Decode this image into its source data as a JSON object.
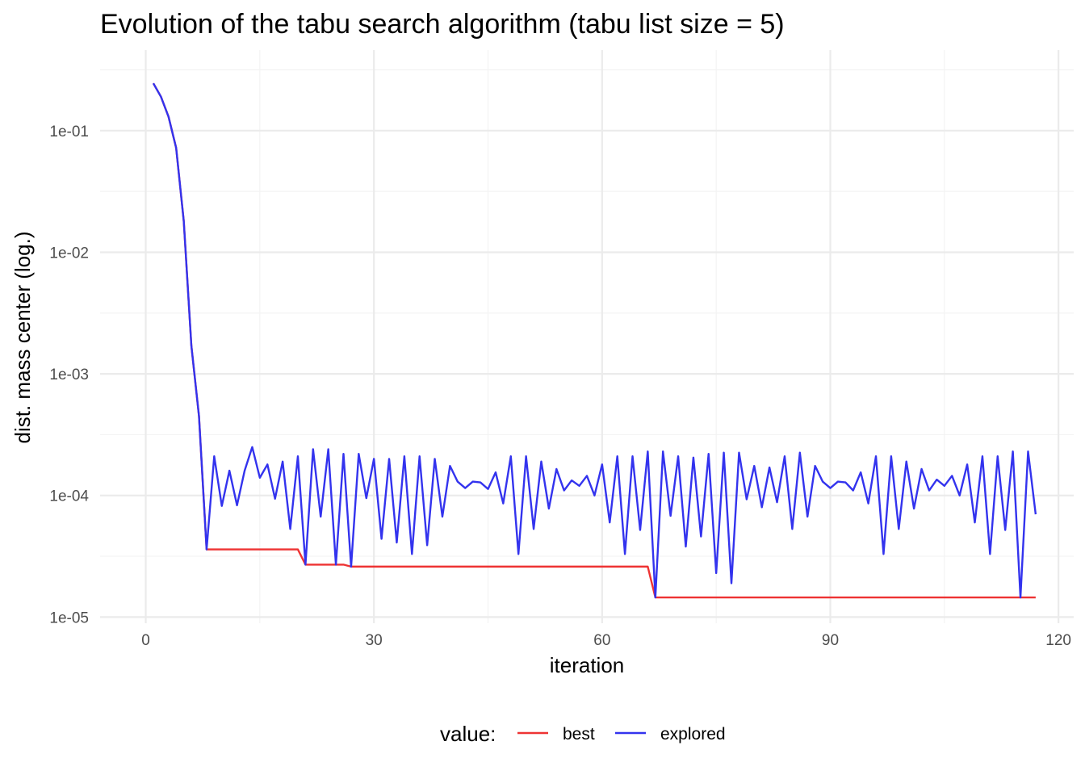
{
  "chart_data": {
    "type": "line",
    "title": "Evolution of the tabu search algorithm (tabu list size = 5)",
    "xlabel": "iteration",
    "ylabel": "dist. mass center (log.)",
    "x_scale": "linear",
    "y_scale": "log10",
    "xlim": [
      -6,
      122
    ],
    "ylim": [
      8.9e-06,
      0.46
    ],
    "x_ticks": [
      0,
      30,
      60,
      90,
      120
    ],
    "x_tick_labels": [
      "0",
      "30",
      "60",
      "90",
      "120"
    ],
    "y_ticks": [
      1e-05,
      0.0001,
      0.001,
      0.01,
      0.1
    ],
    "y_tick_labels": [
      "1e-05",
      "1e-04",
      "1e-03",
      "1e-02",
      "1e-01"
    ],
    "grid": true,
    "legend": {
      "position": "bottom",
      "title": "value:"
    },
    "series": [
      {
        "name": "best",
        "color": "#ee3333",
        "points": [
          [
            1,
            0.245
          ],
          [
            2,
            0.19
          ],
          [
            3,
            0.13
          ],
          [
            4,
            0.072
          ],
          [
            5,
            0.018
          ],
          [
            6,
            0.0017
          ],
          [
            7,
            0.00045
          ],
          [
            8,
            3.6e-05
          ],
          [
            20,
            3.6e-05
          ],
          [
            21,
            2.7e-05
          ],
          [
            25,
            2.7e-05
          ],
          [
            26,
            2.7e-05
          ],
          [
            27,
            2.6e-05
          ],
          [
            66,
            2.6e-05
          ],
          [
            67,
            1.45e-05
          ],
          [
            117,
            1.45e-05
          ]
        ]
      },
      {
        "name": "explored",
        "color": "#3333ee",
        "points": [
          [
            1,
            0.245
          ],
          [
            2,
            0.19
          ],
          [
            3,
            0.13
          ],
          [
            4,
            0.072
          ],
          [
            5,
            0.018
          ],
          [
            6,
            0.0017
          ],
          [
            7,
            0.00045
          ],
          [
            8,
            3.6e-05
          ],
          [
            9,
            0.00021
          ],
          [
            10,
            8.2e-05
          ],
          [
            11,
            0.00016
          ],
          [
            12,
            8.3e-05
          ],
          [
            13,
            0.00016
          ],
          [
            14,
            0.00025
          ],
          [
            15,
            0.00014
          ],
          [
            16,
            0.00018
          ],
          [
            17,
            9.4e-05
          ],
          [
            18,
            0.00019
          ],
          [
            19,
            5.3e-05
          ],
          [
            20,
            0.00021
          ],
          [
            21,
            2.7e-05
          ],
          [
            22,
            0.00024
          ],
          [
            23,
            6.7e-05
          ],
          [
            24,
            0.00024
          ],
          [
            25,
            2.7e-05
          ],
          [
            26,
            0.00022
          ],
          [
            27,
            2.6e-05
          ],
          [
            28,
            0.00022
          ],
          [
            29,
            9.5e-05
          ],
          [
            30,
            0.0002
          ],
          [
            31,
            4.4e-05
          ],
          [
            32,
            0.0002
          ],
          [
            33,
            4.1e-05
          ],
          [
            34,
            0.00021
          ],
          [
            35,
            3.3e-05
          ],
          [
            36,
            0.00021
          ],
          [
            37,
            3.9e-05
          ],
          [
            38,
            0.0002
          ],
          [
            39,
            6.7e-05
          ],
          [
            40,
            0.000175
          ],
          [
            41,
            0.00013
          ],
          [
            42,
            0.000115
          ],
          [
            43,
            0.00013
          ],
          [
            44,
            0.000128
          ],
          [
            45,
            0.000113
          ],
          [
            46,
            0.000155
          ],
          [
            47,
            8.6e-05
          ],
          [
            48,
            0.00021
          ],
          [
            49,
            3.3e-05
          ],
          [
            50,
            0.00021
          ],
          [
            51,
            5.3e-05
          ],
          [
            52,
            0.00019
          ],
          [
            53,
            7.8e-05
          ],
          [
            54,
            0.000165
          ],
          [
            55,
            0.00011
          ],
          [
            56,
            0.000133
          ],
          [
            57,
            0.00012
          ],
          [
            58,
            0.000145
          ],
          [
            59,
            0.0001
          ],
          [
            60,
            0.00018
          ],
          [
            61,
            6e-05
          ],
          [
            62,
            0.00021
          ],
          [
            63,
            3.3e-05
          ],
          [
            64,
            0.00021
          ],
          [
            65,
            5.2e-05
          ],
          [
            66,
            0.00023
          ],
          [
            67,
            1.45e-05
          ],
          [
            68,
            0.00023
          ],
          [
            69,
            6.8e-05
          ],
          [
            70,
            0.00021
          ],
          [
            71,
            3.8e-05
          ],
          [
            72,
            0.000205
          ],
          [
            73,
            4.6e-05
          ],
          [
            74,
            0.00022
          ],
          [
            75,
            2.3e-05
          ],
          [
            76,
            0.000225
          ],
          [
            77,
            1.9e-05
          ],
          [
            78,
            0.000225
          ],
          [
            79,
            9.3e-05
          ],
          [
            80,
            0.000175
          ],
          [
            81,
            8e-05
          ],
          [
            82,
            0.00017
          ],
          [
            83,
            8.8e-05
          ],
          [
            84,
            0.00021
          ],
          [
            85,
            5.3e-05
          ],
          [
            86,
            0.000225
          ],
          [
            87,
            6.7e-05
          ],
          [
            88,
            0.000175
          ],
          [
            89,
            0.00013
          ],
          [
            90,
            0.000115
          ],
          [
            91,
            0.00013
          ],
          [
            92,
            0.000128
          ],
          [
            93,
            0.00011
          ],
          [
            94,
            0.000155
          ],
          [
            95,
            8.6e-05
          ],
          [
            96,
            0.00021
          ],
          [
            97,
            3.3e-05
          ],
          [
            98,
            0.00021
          ],
          [
            99,
            5.3e-05
          ],
          [
            100,
            0.00019
          ],
          [
            101,
            7.8e-05
          ],
          [
            102,
            0.000165
          ],
          [
            103,
            0.00011
          ],
          [
            104,
            0.000135
          ],
          [
            105,
            0.00012
          ],
          [
            106,
            0.000145
          ],
          [
            107,
            0.0001
          ],
          [
            108,
            0.00018
          ],
          [
            109,
            6e-05
          ],
          [
            110,
            0.00021
          ],
          [
            111,
            3.3e-05
          ],
          [
            112,
            0.00021
          ],
          [
            113,
            5.2e-05
          ],
          [
            114,
            0.00023
          ],
          [
            115,
            1.45e-05
          ],
          [
            116,
            0.00023
          ],
          [
            117,
            7e-05
          ]
        ]
      }
    ]
  }
}
